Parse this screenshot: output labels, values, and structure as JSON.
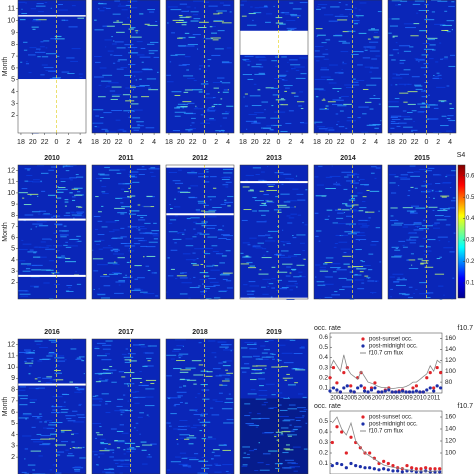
{
  "chart_data": [
    {
      "type": "heatmap",
      "ylabel": "Month",
      "ylim": [
        0.5,
        12.5
      ],
      "yticks": [
        2,
        3,
        4,
        5,
        6,
        7,
        8,
        9,
        10,
        11
      ],
      "xlim": [
        17.5,
        29
      ],
      "xticks": [
        18,
        20,
        22,
        {
          "value": 24,
          "label": "0"
        },
        {
          "value": 26,
          "label": "2"
        },
        {
          "value": 28,
          "label": "4"
        }
      ]
    },
    {
      "type": "heatmap",
      "xlim": [
        17.5,
        29
      ],
      "xticks": [
        18,
        20,
        22,
        {
          "value": 24,
          "label": "0"
        },
        {
          "value": 26,
          "label": "2"
        },
        {
          "value": 28,
          "label": "4"
        }
      ]
    },
    {
      "type": "heatmap",
      "xlim": [
        17.5,
        29
      ],
      "xticks": [
        18,
        20,
        22,
        {
          "value": 24,
          "label": "0"
        },
        {
          "value": 26,
          "label": "2"
        },
        {
          "value": 28,
          "label": "4"
        }
      ]
    },
    {
      "type": "heatmap",
      "xlim": [
        17.5,
        29
      ],
      "xticks": [
        18,
        20,
        22,
        {
          "value": 24,
          "label": "0"
        },
        {
          "value": 26,
          "label": "2"
        },
        {
          "value": 28,
          "label": "4"
        }
      ]
    },
    {
      "type": "heatmap",
      "xlim": [
        17.5,
        29
      ],
      "xticks": [
        18,
        20,
        22,
        {
          "value": 24,
          "label": "0"
        },
        {
          "value": 26,
          "label": "2"
        },
        {
          "value": 28,
          "label": "4"
        }
      ]
    },
    {
      "type": "heatmap",
      "xlim": [
        17.5,
        29
      ],
      "xticks": [
        18,
        20,
        22,
        {
          "value": 24,
          "label": "0"
        },
        {
          "value": 26,
          "label": "2"
        },
        {
          "value": 28,
          "label": "4"
        }
      ]
    },
    {
      "type": "heatmap",
      "title": "2010",
      "ylabel": "Month",
      "ylim": [
        0.5,
        12.5
      ],
      "yticks": [
        2,
        3,
        4,
        5,
        6,
        7,
        8,
        9,
        10,
        11,
        12
      ]
    },
    {
      "type": "heatmap",
      "title": "2011"
    },
    {
      "type": "heatmap",
      "title": "2012"
    },
    {
      "type": "heatmap",
      "title": "2013"
    },
    {
      "type": "heatmap",
      "title": "2014"
    },
    {
      "type": "heatmap",
      "title": "2015"
    },
    {
      "type": "heatmap",
      "title": "2016",
      "ylabel": "Month",
      "ylim": [
        0.5,
        12.5
      ],
      "yticks": [
        2,
        3,
        4,
        5,
        6,
        7,
        8,
        9,
        10,
        11,
        12
      ]
    },
    {
      "type": "heatmap",
      "title": "2017"
    },
    {
      "type": "heatmap",
      "title": "2018"
    },
    {
      "type": "heatmap",
      "title": "2019"
    },
    {
      "type": "colorbar",
      "title": "S4",
      "ylim": [
        0.03,
        0.65
      ],
      "yticks": [
        0.1,
        0.2,
        0.3,
        0.4,
        0.5,
        0.6
      ]
    },
    {
      "type": "line",
      "ylabel": "occ. rate",
      "y2label": "f10.7",
      "xlim": [
        2003.5,
        2011.6
      ],
      "xticks": [
        2004,
        2005,
        2006,
        2007,
        2008,
        2009,
        2010,
        2011
      ],
      "ylim": [
        0.05,
        0.64
      ],
      "yticks": [
        0.1,
        0.2,
        0.3,
        0.4,
        0.5,
        0.6
      ],
      "y2lim": [
        60,
        170
      ],
      "y2ticks": [
        80,
        100,
        120,
        140,
        160
      ],
      "x": [
        2003.5,
        2003.75,
        2004,
        2004.25,
        2004.5,
        2004.75,
        2005,
        2005.25,
        2005.5,
        2005.75,
        2006,
        2006.25,
        2006.5,
        2006.75,
        2007,
        2007.25,
        2007.5,
        2007.75,
        2008,
        2008.25,
        2008.5,
        2008.75,
        2009,
        2009.25,
        2009.5,
        2009.75,
        2010,
        2010.25,
        2010.5,
        2010.75,
        2011,
        2011.25,
        2011.5
      ],
      "series": [
        {
          "name": "post-sunset occ.",
          "color": "#e0242a",
          "style": "markers",
          "values": [
            0.2,
            0.3,
            0.15,
            0.06,
            0.25,
            0.3,
            0.12,
            0.06,
            0.2,
            0.25,
            0.1,
            0.06,
            0.1,
            0.15,
            0.06,
            0.06,
            0.08,
            0.1,
            0.06,
            0.06,
            0.07,
            0.08,
            0.06,
            0.06,
            0.1,
            0.12,
            0.06,
            0.06,
            0.2,
            0.25,
            0.1,
            0.3,
            0.25
          ]
        },
        {
          "name": "post-midnight occ.",
          "color": "#1c2fa8",
          "style": "markers",
          "values": [
            0.07,
            0.1,
            0.08,
            0.06,
            0.1,
            0.12,
            0.07,
            0.06,
            0.1,
            0.12,
            0.07,
            0.06,
            0.08,
            0.1,
            0.06,
            0.06,
            0.07,
            0.08,
            0.06,
            0.06,
            0.06,
            0.07,
            0.06,
            0.06,
            0.06,
            0.07,
            0.06,
            0.06,
            0.08,
            0.1,
            0.07,
            0.12,
            0.1
          ]
        },
        {
          "name": "f10.7 cm flux",
          "color": "#888888",
          "style": "line",
          "axis": "y2",
          "values": [
            105,
            120,
            110,
            100,
            130,
            105,
            95,
            90,
            85,
            100,
            90,
            80,
            78,
            75,
            72,
            70,
            70,
            69,
            68,
            69,
            70,
            70,
            72,
            75,
            80,
            80,
            85,
            90,
            95,
            110,
            100,
            120,
            115
          ]
        }
      ]
    },
    {
      "type": "line",
      "ylabel": "occ. rate",
      "y2label": "f10.7",
      "ylim": [
        0,
        0.6
      ],
      "yticks": [
        0.1,
        0.2,
        0.3,
        0.4,
        0.5
      ],
      "y2lim": [
        65,
        170
      ],
      "y2ticks": [
        100,
        120,
        140,
        160
      ],
      "series": [
        {
          "name": "post-sunset occ.",
          "color": "#e0242a",
          "style": "markers",
          "values": [
            0.3,
            0.45,
            0.4,
            0.2,
            0.35,
            0.3,
            0.25,
            0.2,
            0.2,
            0.15,
            0.1,
            0.12,
            0.1,
            0.08,
            0.06,
            0.05,
            0.08,
            0.06,
            0.05,
            0.05,
            0.06,
            0.05,
            0.05,
            0.05
          ]
        },
        {
          "name": "post-midnight occ.",
          "color": "#1c2fa8",
          "style": "markers",
          "values": [
            0.08,
            0.1,
            0.09,
            0.06,
            0.1,
            0.08,
            0.07,
            0.06,
            0.06,
            0.05,
            0.04,
            0.05,
            0.04,
            0.03,
            0.03,
            0.02,
            0.03,
            0.03,
            0.02,
            0.02,
            0.03,
            0.02,
            0.02,
            0.02
          ]
        },
        {
          "name": "f10.7 cm flux",
          "color": "#888888",
          "style": "line",
          "axis": "y2",
          "values": [
            150,
            160,
            140,
            130,
            150,
            120,
            110,
            100,
            95,
            90,
            85,
            80,
            78,
            76,
            75,
            74,
            72,
            71,
            70,
            70,
            70,
            69,
            70,
            70
          ]
        }
      ]
    }
  ]
}
